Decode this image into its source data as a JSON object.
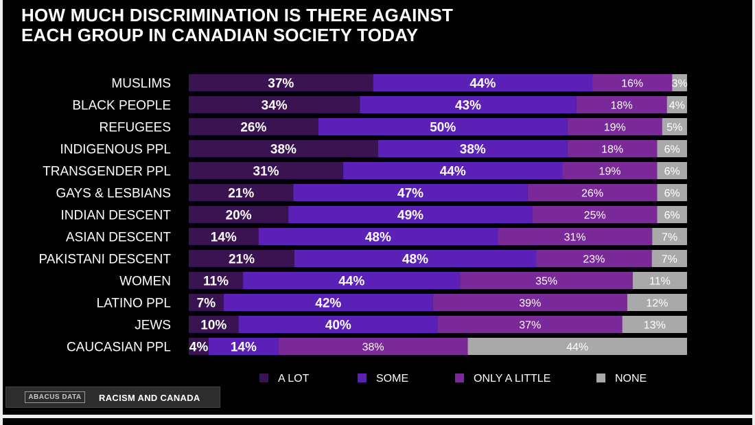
{
  "title": {
    "line1": "HOW MUCH DISCRIMINATION IS THERE AGAINST",
    "line2": "EACH GROUP IN CANADIAN SOCIETY TODAY"
  },
  "footer": {
    "logo_text": "ABACUS DATA",
    "caption": "RACISM AND CANADA"
  },
  "colors": {
    "background": "#000000",
    "a_lot": "#3a1450",
    "some": "#5b20b8",
    "only_a_little": "#7a2a98",
    "none": "#a9a9a9",
    "text": "#ffffff"
  },
  "chart_data": {
    "type": "bar",
    "orientation": "horizontal",
    "stacked": true,
    "percent": true,
    "title": "HOW MUCH DISCRIMINATION IS THERE AGAINST EACH GROUP IN CANADIAN SOCIETY TODAY",
    "categories": [
      "MUSLIMS",
      "BLACK PEOPLE",
      "REFUGEES",
      "INDIGENOUS PPL",
      "TRANSGENDER PPL",
      "GAYS & LESBIANS",
      "INDIAN DESCENT",
      "ASIAN DESCENT",
      "PAKISTANI DESCENT",
      "WOMEN",
      "LATINO PPL",
      "JEWS",
      "CAUCASIAN PPL"
    ],
    "series": [
      {
        "name": "A LOT",
        "values": [
          37,
          34,
          26,
          38,
          31,
          21,
          20,
          14,
          21,
          11,
          7,
          10,
          4
        ]
      },
      {
        "name": "SOME",
        "values": [
          44,
          43,
          50,
          38,
          44,
          47,
          49,
          48,
          48,
          44,
          42,
          40,
          14
        ]
      },
      {
        "name": "ONLY A LITTLE",
        "values": [
          16,
          18,
          19,
          18,
          19,
          26,
          25,
          31,
          23,
          35,
          39,
          37,
          38
        ]
      },
      {
        "name": "NONE",
        "values": [
          3,
          4,
          5,
          6,
          6,
          6,
          6,
          7,
          7,
          11,
          12,
          13,
          44
        ]
      }
    ],
    "legend_position": "bottom",
    "grid": false
  }
}
